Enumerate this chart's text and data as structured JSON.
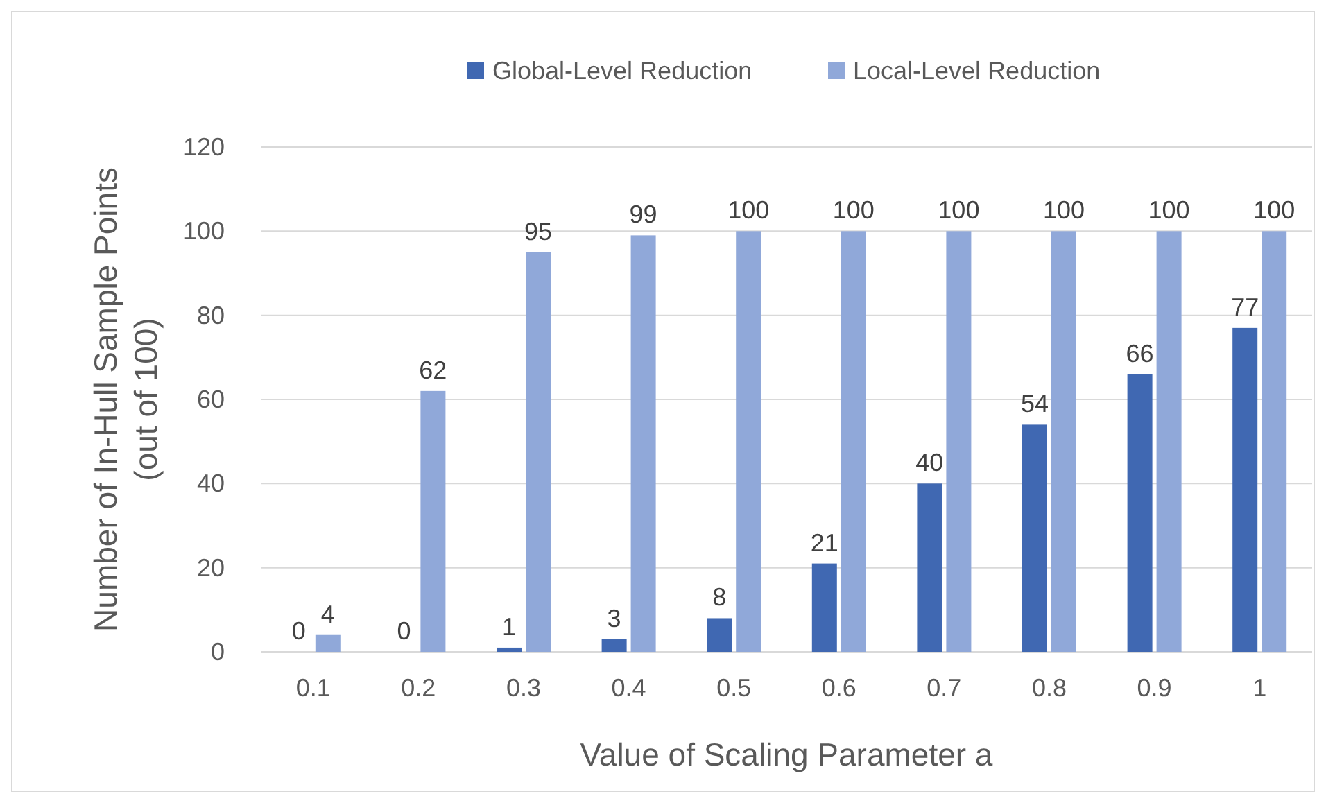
{
  "chart_data": {
    "type": "bar",
    "xlabel": "Value of Scaling Parameter a",
    "ylabel": "Number of In-Hull Sample Points\n(out of 100)",
    "categories": [
      "0.1",
      "0.2",
      "0.3",
      "0.4",
      "0.5",
      "0.6",
      "0.7",
      "0.8",
      "0.9",
      "1"
    ],
    "series": [
      {
        "name": "Global-Level Reduction",
        "color": "#4068b2",
        "values": [
          0,
          0,
          1,
          3,
          8,
          21,
          40,
          54,
          66,
          77
        ]
      },
      {
        "name": "Local-Level Reduction",
        "color": "#90a8d9",
        "values": [
          4,
          62,
          95,
          99,
          100,
          100,
          100,
          100,
          100,
          100
        ]
      }
    ],
    "ylim": [
      0,
      120
    ],
    "yticks": [
      0,
      20,
      40,
      60,
      80,
      100,
      120
    ],
    "grid": "y",
    "legend": "top",
    "data_labels": true
  }
}
